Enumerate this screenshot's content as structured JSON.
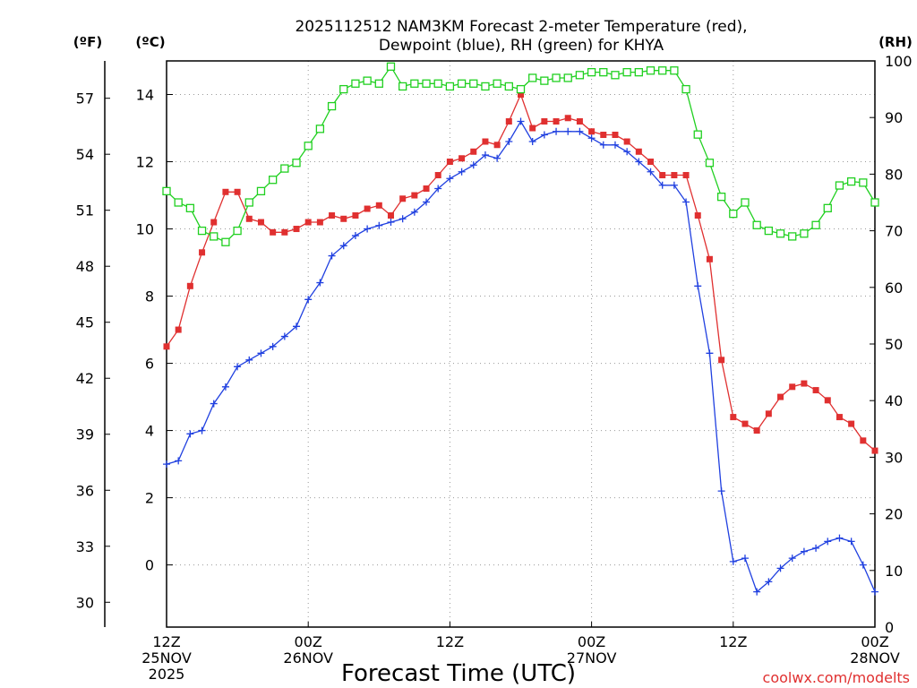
{
  "chart_data": {
    "type": "line",
    "title_line1": "2025112512 NAM3KM Forecast 2-meter Temperature (red),",
    "title_line2": "Dewpoint (blue), RH (green) for KHYA",
    "unit_f": "(ºF)",
    "unit_c": "(ºC)",
    "unit_rh": "(RH)",
    "xlabel": "Forecast Time (UTC)",
    "watermark": "coolwx.com/modelts",
    "x_range_hours": [
      0,
      60
    ],
    "celsius_axis": {
      "range": [
        -1.85,
        15
      ],
      "ticks": [
        "0",
        "2",
        "4",
        "6",
        "8",
        "10",
        "12",
        "14"
      ],
      "tick_values": [
        0,
        2,
        4,
        6,
        8,
        10,
        12,
        14
      ]
    },
    "fahrenheit_axis": {
      "ticks": [
        "30",
        "33",
        "36",
        "39",
        "42",
        "45",
        "48",
        "51",
        "54",
        "57"
      ],
      "tick_values": [
        30,
        33,
        36,
        39,
        42,
        45,
        48,
        51,
        54,
        57
      ]
    },
    "rh_axis": {
      "range": [
        0,
        100
      ],
      "ticks": [
        "0",
        "10",
        "20",
        "30",
        "40",
        "50",
        "60",
        "70",
        "80",
        "90",
        "100"
      ],
      "tick_values": [
        0,
        10,
        20,
        30,
        40,
        50,
        60,
        70,
        80,
        90,
        100
      ]
    },
    "x_ticks": [
      {
        "hour": 0,
        "lines": [
          "12Z",
          "25NOV",
          "2025"
        ]
      },
      {
        "hour": 12,
        "lines": [
          "00Z",
          "26NOV"
        ]
      },
      {
        "hour": 24,
        "lines": [
          "12Z"
        ]
      },
      {
        "hour": 36,
        "lines": [
          "00Z",
          "27NOV"
        ]
      },
      {
        "hour": 48,
        "lines": [
          "12Z"
        ]
      },
      {
        "hour": 60,
        "lines": [
          "00Z",
          "28NOV"
        ]
      }
    ],
    "hours": [
      0,
      1,
      2,
      3,
      4,
      5,
      6,
      7,
      8,
      9,
      10,
      11,
      12,
      13,
      14,
      15,
      16,
      17,
      18,
      19,
      20,
      21,
      22,
      23,
      24,
      25,
      26,
      27,
      28,
      29,
      30,
      31,
      32,
      33,
      34,
      35,
      36,
      37,
      38,
      39,
      40,
      41,
      42,
      43,
      44,
      45,
      46,
      47,
      48,
      49,
      50,
      51,
      52,
      53,
      54,
      55,
      56,
      57,
      58,
      59,
      60
    ],
    "series": [
      {
        "name": "Temperature (°C)",
        "color": "#e03030",
        "axis": "celsius",
        "marker": "filled-square",
        "values": [
          6.5,
          7.0,
          8.3,
          9.3,
          10.2,
          11.1,
          11.1,
          10.3,
          10.2,
          9.9,
          9.9,
          10.0,
          10.2,
          10.2,
          10.4,
          10.3,
          10.4,
          10.6,
          10.7,
          10.4,
          10.9,
          11.0,
          11.2,
          11.6,
          12.0,
          12.1,
          12.3,
          12.6,
          12.5,
          13.2,
          14.0,
          13.0,
          13.2,
          13.2,
          13.3,
          13.2,
          12.9,
          12.8,
          12.8,
          12.6,
          12.3,
          12.0,
          11.6,
          11.6,
          11.6,
          10.4,
          9.1,
          6.1,
          4.4,
          4.2,
          4.0,
          4.5,
          5.0,
          5.3,
          5.4,
          5.2,
          4.9,
          4.4,
          4.2,
          3.7,
          3.4
        ]
      },
      {
        "name": "Dewpoint (°C)",
        "color": "#2040e0",
        "axis": "celsius",
        "marker": "plus",
        "values": [
          3.0,
          3.1,
          3.9,
          4.0,
          4.8,
          5.3,
          5.9,
          6.1,
          6.3,
          6.5,
          6.8,
          7.1,
          7.9,
          8.4,
          9.2,
          9.5,
          9.8,
          10.0,
          10.1,
          10.2,
          10.3,
          10.5,
          10.8,
          11.2,
          11.5,
          11.7,
          11.9,
          12.2,
          12.1,
          12.6,
          13.2,
          12.6,
          12.8,
          12.9,
          12.9,
          12.9,
          12.7,
          12.5,
          12.5,
          12.3,
          12.0,
          11.7,
          11.3,
          11.3,
          10.8,
          8.3,
          6.3,
          2.2,
          0.1,
          0.2,
          -0.8,
          -0.5,
          -0.1,
          0.2,
          0.4,
          0.5,
          0.7,
          0.8,
          0.7,
          0.0,
          -0.8
        ]
      },
      {
        "name": "Relative Humidity (%)",
        "color": "#20d020",
        "axis": "rh",
        "marker": "open-square",
        "values": [
          77,
          75,
          74,
          70,
          69,
          68,
          70,
          75,
          77,
          79,
          81,
          82,
          85,
          88,
          92,
          95,
          96,
          96.5,
          96,
          99,
          95.5,
          96,
          96,
          96,
          95.5,
          96,
          96,
          95.5,
          96,
          95.5,
          95,
          97,
          96.5,
          97,
          97,
          97.5,
          98,
          98,
          97.5,
          98,
          98,
          98.3,
          98.3,
          98.3,
          95,
          87,
          82,
          76,
          73,
          75,
          71,
          70,
          69.5,
          69,
          69.5,
          71,
          74,
          78,
          78.7,
          78.5,
          75
        ]
      }
    ]
  }
}
